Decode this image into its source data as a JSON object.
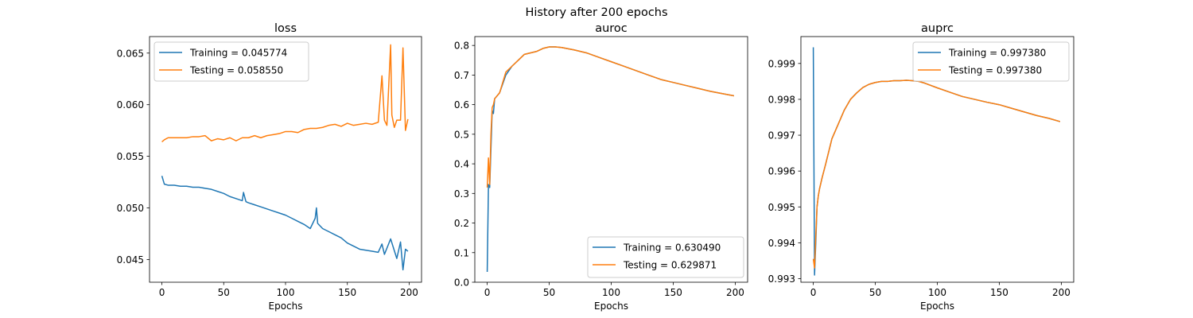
{
  "figure": {
    "title": "History after 200 epochs"
  },
  "chart_data": [
    {
      "type": "line",
      "title": "loss",
      "xlabel": "Epochs",
      "ylabel": "",
      "xlim": [
        -10,
        210
      ],
      "ylim": [
        0.0428,
        0.0666
      ],
      "xticks": [
        0,
        50,
        100,
        150,
        200
      ],
      "yticks": [
        0.045,
        0.05,
        0.055,
        0.06,
        0.065
      ],
      "ytick_labels": [
        "0.045",
        "0.050",
        "0.055",
        "0.060",
        "0.065"
      ],
      "legend_position": "upper-left",
      "series": [
        {
          "name": "Training = 0.045774",
          "color": "#1f77b4",
          "x": [
            0,
            2,
            5,
            10,
            15,
            20,
            25,
            30,
            35,
            40,
            45,
            50,
            55,
            60,
            65,
            66,
            68,
            70,
            75,
            80,
            85,
            90,
            95,
            100,
            105,
            110,
            115,
            120,
            124,
            125,
            126,
            130,
            135,
            140,
            145,
            150,
            155,
            160,
            165,
            170,
            175,
            178,
            180,
            185,
            190,
            193,
            195,
            197,
            199
          ],
          "y": [
            0.0531,
            0.0523,
            0.0522,
            0.0522,
            0.0521,
            0.0521,
            0.052,
            0.052,
            0.0519,
            0.0518,
            0.0516,
            0.0514,
            0.0511,
            0.0509,
            0.0507,
            0.0515,
            0.0506,
            0.0505,
            0.0503,
            0.0501,
            0.0499,
            0.0497,
            0.0495,
            0.0493,
            0.049,
            0.0487,
            0.0484,
            0.048,
            0.049,
            0.05,
            0.0485,
            0.048,
            0.0477,
            0.0474,
            0.0471,
            0.0466,
            0.0463,
            0.046,
            0.0459,
            0.0458,
            0.0457,
            0.0465,
            0.0455,
            0.047,
            0.0451,
            0.0467,
            0.044,
            0.046,
            0.0458
          ]
        },
        {
          "name": "Testing = 0.058550",
          "color": "#ff7f0e",
          "x": [
            0,
            2,
            5,
            10,
            15,
            20,
            25,
            30,
            35,
            40,
            45,
            50,
            55,
            60,
            65,
            70,
            75,
            80,
            85,
            90,
            95,
            100,
            105,
            110,
            115,
            120,
            125,
            130,
            135,
            140,
            145,
            150,
            155,
            160,
            165,
            170,
            175,
            178,
            180,
            182,
            185,
            186,
            188,
            190,
            193,
            195,
            197,
            199
          ],
          "y": [
            0.0564,
            0.0566,
            0.0568,
            0.0568,
            0.0568,
            0.0568,
            0.0569,
            0.0569,
            0.057,
            0.0565,
            0.0567,
            0.0566,
            0.0568,
            0.0565,
            0.0568,
            0.0568,
            0.057,
            0.0568,
            0.057,
            0.0571,
            0.0572,
            0.0574,
            0.0574,
            0.0573,
            0.0576,
            0.0577,
            0.0577,
            0.0578,
            0.058,
            0.0581,
            0.0579,
            0.0582,
            0.058,
            0.0581,
            0.0582,
            0.0581,
            0.0583,
            0.0628,
            0.0585,
            0.058,
            0.0658,
            0.059,
            0.0578,
            0.0585,
            0.0585,
            0.0655,
            0.0575,
            0.0586
          ]
        }
      ]
    },
    {
      "type": "line",
      "title": "auroc",
      "xlabel": "Epochs",
      "ylabel": "",
      "xlim": [
        -10,
        210
      ],
      "ylim": [
        0.0,
        0.83
      ],
      "xticks": [
        0,
        50,
        100,
        150,
        200
      ],
      "yticks": [
        0.0,
        0.1,
        0.2,
        0.3,
        0.4,
        0.5,
        0.6,
        0.7,
        0.8
      ],
      "ytick_labels": [
        "0.0",
        "0.1",
        "0.2",
        "0.3",
        "0.4",
        "0.5",
        "0.6",
        "0.7",
        "0.8"
      ],
      "legend_position": "lower-right",
      "series": [
        {
          "name": "Training = 0.630490",
          "color": "#1f77b4",
          "x": [
            0,
            1,
            2,
            3,
            4,
            5,
            6,
            8,
            10,
            15,
            20,
            25,
            30,
            35,
            40,
            45,
            50,
            55,
            60,
            70,
            80,
            90,
            100,
            110,
            120,
            130,
            140,
            150,
            160,
            170,
            180,
            190,
            199
          ],
          "y": [
            0.035,
            0.33,
            0.32,
            0.45,
            0.58,
            0.57,
            0.62,
            0.63,
            0.64,
            0.7,
            0.73,
            0.75,
            0.77,
            0.775,
            0.78,
            0.79,
            0.795,
            0.795,
            0.793,
            0.785,
            0.775,
            0.76,
            0.745,
            0.73,
            0.715,
            0.7,
            0.685,
            0.675,
            0.665,
            0.655,
            0.645,
            0.637,
            0.63
          ]
        },
        {
          "name": "Testing = 0.629871",
          "color": "#ff7f0e",
          "x": [
            0,
            1,
            2,
            3,
            4,
            5,
            6,
            8,
            10,
            15,
            20,
            25,
            30,
            35,
            40,
            45,
            50,
            55,
            60,
            70,
            80,
            90,
            100,
            110,
            120,
            130,
            140,
            150,
            160,
            170,
            180,
            190,
            199
          ],
          "y": [
            0.32,
            0.42,
            0.33,
            0.5,
            0.59,
            0.6,
            0.62,
            0.63,
            0.64,
            0.71,
            0.73,
            0.75,
            0.77,
            0.775,
            0.78,
            0.79,
            0.795,
            0.795,
            0.793,
            0.785,
            0.775,
            0.76,
            0.745,
            0.73,
            0.715,
            0.7,
            0.685,
            0.675,
            0.665,
            0.655,
            0.645,
            0.637,
            0.63
          ]
        }
      ]
    },
    {
      "type": "line",
      "title": "auprc",
      "xlabel": "Epochs",
      "ylabel": "",
      "xlim": [
        -10,
        210
      ],
      "ylim": [
        0.9929,
        0.99975
      ],
      "xticks": [
        0,
        50,
        100,
        150,
        200
      ],
      "yticks": [
        0.993,
        0.994,
        0.995,
        0.996,
        0.997,
        0.998,
        0.999
      ],
      "ytick_labels": [
        "0.993",
        "0.994",
        "0.995",
        "0.996",
        "0.997",
        "0.998",
        "0.999"
      ],
      "legend_position": "upper-right",
      "series": [
        {
          "name": "Training = 0.997380",
          "color": "#1f77b4",
          "x": [
            0,
            1,
            2,
            3,
            4,
            5,
            7,
            10,
            15,
            20,
            25,
            30,
            35,
            40,
            45,
            50,
            55,
            60,
            65,
            70,
            75,
            80,
            85,
            90,
            100,
            110,
            120,
            130,
            140,
            150,
            160,
            170,
            180,
            190,
            199
          ],
          "y": [
            0.99945,
            0.9931,
            0.994,
            0.995,
            0.9953,
            0.9955,
            0.9958,
            0.9962,
            0.9969,
            0.9973,
            0.9977,
            0.998,
            0.99818,
            0.99833,
            0.99842,
            0.99847,
            0.9985,
            0.9985,
            0.99852,
            0.99852,
            0.99853,
            0.99852,
            0.9985,
            0.99845,
            0.99832,
            0.9982,
            0.99808,
            0.998,
            0.99792,
            0.99785,
            0.99775,
            0.99765,
            0.99755,
            0.99747,
            0.99738
          ]
        },
        {
          "name": "Testing = 0.997380",
          "color": "#ff7f0e",
          "x": [
            0,
            1,
            2,
            3,
            4,
            5,
            7,
            10,
            15,
            20,
            25,
            30,
            35,
            40,
            45,
            50,
            55,
            60,
            65,
            70,
            75,
            80,
            85,
            90,
            100,
            110,
            120,
            130,
            140,
            150,
            160,
            170,
            180,
            190,
            199
          ],
          "y": [
            0.99355,
            0.9933,
            0.9942,
            0.995,
            0.9953,
            0.9955,
            0.9958,
            0.9962,
            0.9969,
            0.9973,
            0.9977,
            0.998,
            0.99818,
            0.99833,
            0.99842,
            0.99847,
            0.9985,
            0.9985,
            0.99852,
            0.99852,
            0.99853,
            0.99852,
            0.9985,
            0.99845,
            0.99832,
            0.9982,
            0.99808,
            0.998,
            0.99792,
            0.99785,
            0.99775,
            0.99765,
            0.99755,
            0.99747,
            0.99738
          ]
        }
      ]
    }
  ]
}
